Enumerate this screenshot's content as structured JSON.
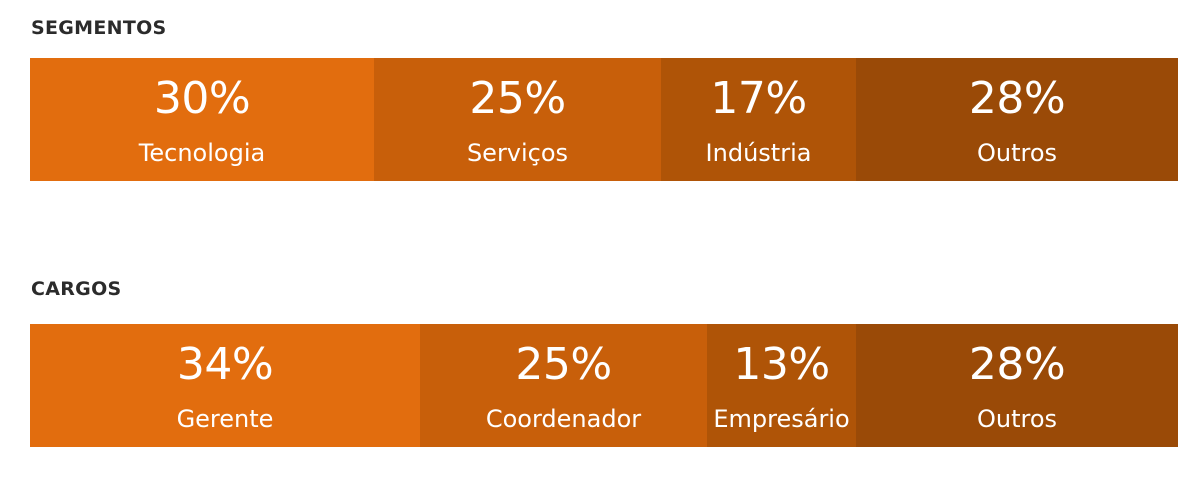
{
  "chart_data": [
    {
      "type": "bar",
      "title": "SEGMENTOS",
      "categories": [
        "Tecnologia",
        "Serviços",
        "Indústria",
        "Outros"
      ],
      "values": [
        30,
        25,
        17,
        28
      ],
      "value_labels": [
        "30%",
        "25%",
        "17%",
        "28%"
      ],
      "colors": [
        "#E26D0E",
        "#C85F0A",
        "#AF5407",
        "#9A4A07"
      ],
      "stacked": true,
      "orientation": "horizontal",
      "grid": false
    },
    {
      "type": "bar",
      "title": "CARGOS",
      "categories": [
        "Gerente",
        "Coordenador",
        "Empresário",
        "Outros"
      ],
      "values": [
        34,
        25,
        13,
        28
      ],
      "value_labels": [
        "34%",
        "25%",
        "13%",
        "28%"
      ],
      "colors": [
        "#E26D0E",
        "#C85F0A",
        "#AF5407",
        "#9A4A07"
      ],
      "stacked": true,
      "orientation": "horizontal",
      "grid": false
    }
  ]
}
